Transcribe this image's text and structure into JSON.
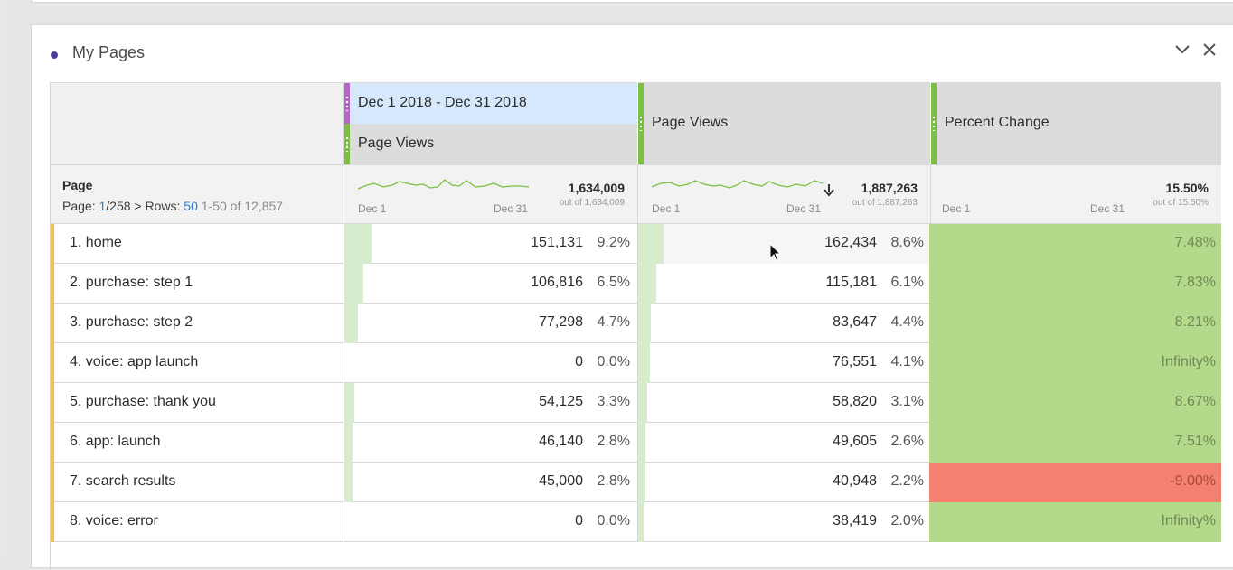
{
  "panel": {
    "title": "My Pages"
  },
  "header": {
    "date_range": "Dec 1 2018 - Dec 31 2018",
    "col1_metric": "Page Views",
    "col2_metric": "Page Views",
    "col3_metric": "Percent Change"
  },
  "summary": {
    "dimension": "Page",
    "pager_page_label": "Page:",
    "pager_page": "1",
    "pager_total_pages": "/258",
    "pager_rows_label": "Rows:",
    "pager_rows": "50",
    "pager_range": "1-50 of 12,857",
    "spark_start": "Dec 1",
    "spark_end": "Dec 31",
    "col1_total": "1,634,009",
    "col1_outof": "out of 1,634,009",
    "col2_total": "1,887,263",
    "col2_outof": "out of 1,887,263",
    "col3_total": "15.50%",
    "col3_outof": "out of 15.50%"
  },
  "rows": [
    {
      "label": "1. home",
      "v1": "151,131",
      "p1": "9.2%",
      "v2": "162,434",
      "p2": "8.6%",
      "change": "7.48%",
      "f1": 0.092,
      "f2": 0.086,
      "negative": false
    },
    {
      "label": "2. purchase: step 1",
      "v1": "106,816",
      "p1": "6.5%",
      "v2": "115,181",
      "p2": "6.1%",
      "change": "7.83%",
      "f1": 0.065,
      "f2": 0.061,
      "negative": false
    },
    {
      "label": "3. purchase: step 2",
      "v1": "77,298",
      "p1": "4.7%",
      "v2": "83,647",
      "p2": "4.4%",
      "change": "8.21%",
      "f1": 0.047,
      "f2": 0.044,
      "negative": false
    },
    {
      "label": "4. voice: app launch",
      "v1": "0",
      "p1": "0.0%",
      "v2": "76,551",
      "p2": "4.1%",
      "change": "Infinity%",
      "f1": 0.0,
      "f2": 0.041,
      "negative": false
    },
    {
      "label": "5. purchase: thank you",
      "v1": "54,125",
      "p1": "3.3%",
      "v2": "58,820",
      "p2": "3.1%",
      "change": "8.67%",
      "f1": 0.033,
      "f2": 0.031,
      "negative": false
    },
    {
      "label": "6. app: launch",
      "v1": "46,140",
      "p1": "2.8%",
      "v2": "49,605",
      "p2": "2.6%",
      "change": "7.51%",
      "f1": 0.028,
      "f2": 0.026,
      "negative": false
    },
    {
      "label": "7. search results",
      "v1": "45,000",
      "p1": "2.8%",
      "v2": "40,948",
      "p2": "2.2%",
      "change": "-9.00%",
      "f1": 0.028,
      "f2": 0.022,
      "negative": true
    },
    {
      "label": "8. voice: error",
      "v1": "0",
      "p1": "0.0%",
      "v2": "38,419",
      "p2": "2.0%",
      "change": "Infinity%",
      "f1": 0.0,
      "f2": 0.02,
      "negative": false
    }
  ],
  "colors": {
    "positive": "#b3d98a",
    "negative": "#f4806f",
    "positive_text": "#6e8a55",
    "negative_text": "#a34a3d"
  }
}
